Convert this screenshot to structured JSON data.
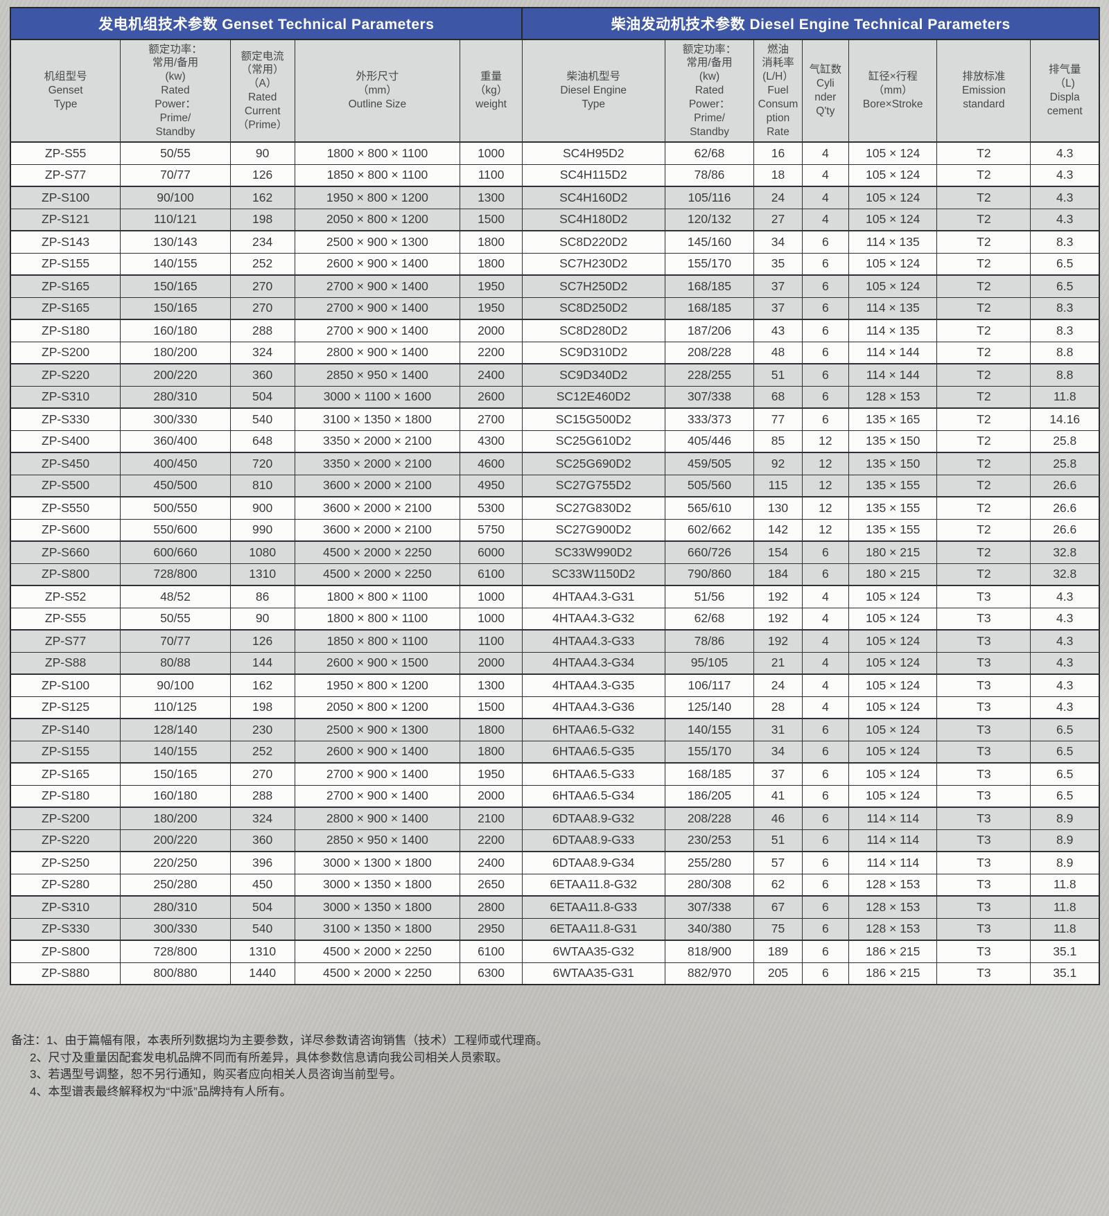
{
  "theme": {
    "header_blue": "#3d57a6",
    "row_shade": "#d9dbda",
    "row_white": "#fcfcfb",
    "border_dark": "#2c2f33",
    "page_background": "#c7c6c2"
  },
  "table": {
    "sections": [
      {
        "title": "发电机组技术参数 Genset Technical Parameters",
        "span": 5
      },
      {
        "title": "柴油发动机技术参数 Diesel Engine Technical Parameters",
        "span": 7
      }
    ],
    "columns": [
      {
        "id": "genset-type",
        "label": "机组型号\nGenset\nType",
        "width": 10.1
      },
      {
        "id": "genset-rated-power",
        "label": "额定功率：\n常用/备用\n(kw)\nRated\nPower：\nPrime/\nStandby",
        "width": 10.1
      },
      {
        "id": "rated-current",
        "label": "额定电流\n（常用）\n（A）\nRated\nCurrent\n（Prime）",
        "width": 5.9
      },
      {
        "id": "outline-size",
        "label": "外形尺寸\n（mm）\nOutline Size",
        "width": 15.2
      },
      {
        "id": "weight",
        "label": "重量\n（kg）\nweight",
        "width": 5.7
      },
      {
        "id": "engine-type",
        "label": "柴油机型号\nDiesel Engine\nType",
        "width": 13.1
      },
      {
        "id": "engine-rated-power",
        "label": "额定功率：\n常用/备用\n(kw)\nRated\nPower：\nPrime/\nStandby",
        "width": 8.2
      },
      {
        "id": "fuel-consumption",
        "label": "燃油\n消耗率\n(L/H）\nFuel\nConsum\nption\nRate",
        "width": 4.4
      },
      {
        "id": "cylinder-qty",
        "label": "气缸数\nCyli\nnder\nQ'ty",
        "width": 4.3
      },
      {
        "id": "bore-stroke",
        "label": "缸径×行程\n（mm）\nBore×Stroke",
        "width": 8.1
      },
      {
        "id": "emission-standard",
        "label": "排放标准\nEmission\nstandard",
        "width": 8.6
      },
      {
        "id": "displacement",
        "label": "排气量\n（L)\nDispla\ncement",
        "width": 6.3
      }
    ],
    "rows": [
      [
        "ZP-S55",
        "50/55",
        "90",
        "1800 × 800 × 1100",
        "1000",
        "SC4H95D2",
        "62/68",
        "16",
        "4",
        "105 × 124",
        "T2",
        "4.3"
      ],
      [
        "ZP-S77",
        "70/77",
        "126",
        "1850 × 800 × 1100",
        "1100",
        "SC4H115D2",
        "78/86",
        "18",
        "4",
        "105 × 124",
        "T2",
        "4.3"
      ],
      [
        "ZP-S100",
        "90/100",
        "162",
        "1950 × 800 × 1200",
        "1300",
        "SC4H160D2",
        "105/116",
        "24",
        "4",
        "105 × 124",
        "T2",
        "4.3"
      ],
      [
        "ZP-S121",
        "110/121",
        "198",
        "2050 × 800 × 1200",
        "1500",
        "SC4H180D2",
        "120/132",
        "27",
        "4",
        "105 × 124",
        "T2",
        "4.3"
      ],
      [
        "ZP-S143",
        "130/143",
        "234",
        "2500 × 900 × 1300",
        "1800",
        "SC8D220D2",
        "145/160",
        "34",
        "6",
        "114 × 135",
        "T2",
        "8.3"
      ],
      [
        "ZP-S155",
        "140/155",
        "252",
        "2600 × 900 × 1400",
        "1800",
        "SC7H230D2",
        "155/170",
        "35",
        "6",
        "105 × 124",
        "T2",
        "6.5"
      ],
      [
        "ZP-S165",
        "150/165",
        "270",
        "2700 × 900 × 1400",
        "1950",
        "SC7H250D2",
        "168/185",
        "37",
        "6",
        "105 × 124",
        "T2",
        "6.5"
      ],
      [
        "ZP-S165",
        "150/165",
        "270",
        "2700 × 900 × 1400",
        "1950",
        "SC8D250D2",
        "168/185",
        "37",
        "6",
        "114 × 135",
        "T2",
        "8.3"
      ],
      [
        "ZP-S180",
        "160/180",
        "288",
        "2700 × 900 × 1400",
        "2000",
        "SC8D280D2",
        "187/206",
        "43",
        "6",
        "114 × 135",
        "T2",
        "8.3"
      ],
      [
        "ZP-S200",
        "180/200",
        "324",
        "2800 × 900 × 1400",
        "2200",
        "SC9D310D2",
        "208/228",
        "48",
        "6",
        "114 × 144",
        "T2",
        "8.8"
      ],
      [
        "ZP-S220",
        "200/220",
        "360",
        "2850 × 950 × 1400",
        "2400",
        "SC9D340D2",
        "228/255",
        "51",
        "6",
        "114 × 144",
        "T2",
        "8.8"
      ],
      [
        "ZP-S310",
        "280/310",
        "504",
        "3000 × 1100 × 1600",
        "2600",
        "SC12E460D2",
        "307/338",
        "68",
        "6",
        "128 × 153",
        "T2",
        "11.8"
      ],
      [
        "ZP-S330",
        "300/330",
        "540",
        "3100 × 1350 × 1800",
        "2700",
        "SC15G500D2",
        "333/373",
        "77",
        "6",
        "135 × 165",
        "T2",
        "14.16"
      ],
      [
        "ZP-S400",
        "360/400",
        "648",
        "3350 × 2000 × 2100",
        "4300",
        "SC25G610D2",
        "405/446",
        "85",
        "12",
        "135 × 150",
        "T2",
        "25.8"
      ],
      [
        "ZP-S450",
        "400/450",
        "720",
        "3350 × 2000 × 2100",
        "4600",
        "SC25G690D2",
        "459/505",
        "92",
        "12",
        "135 × 150",
        "T2",
        "25.8"
      ],
      [
        "ZP-S500",
        "450/500",
        "810",
        "3600 × 2000 × 2100",
        "4950",
        "SC27G755D2",
        "505/560",
        "115",
        "12",
        "135 × 155",
        "T2",
        "26.6"
      ],
      [
        "ZP-S550",
        "500/550",
        "900",
        "3600 × 2000 × 2100",
        "5300",
        "SC27G830D2",
        "565/610",
        "130",
        "12",
        "135 × 155",
        "T2",
        "26.6"
      ],
      [
        "ZP-S600",
        "550/600",
        "990",
        "3600 × 2000 × 2100",
        "5750",
        "SC27G900D2",
        "602/662",
        "142",
        "12",
        "135 × 155",
        "T2",
        "26.6"
      ],
      [
        "ZP-S660",
        "600/660",
        "1080",
        "4500 × 2000 × 2250",
        "6000",
        "SC33W990D2",
        "660/726",
        "154",
        "6",
        "180 × 215",
        "T2",
        "32.8"
      ],
      [
        "ZP-S800",
        "728/800",
        "1310",
        "4500 × 2000 × 2250",
        "6100",
        "SC33W1150D2",
        "790/860",
        "184",
        "6",
        "180 × 215",
        "T2",
        "32.8"
      ],
      [
        "ZP-S52",
        "48/52",
        "86",
        "1800 × 800 × 1100",
        "1000",
        "4HTAA4.3-G31",
        "51/56",
        "192",
        "4",
        "105 × 124",
        "T3",
        "4.3"
      ],
      [
        "ZP-S55",
        "50/55",
        "90",
        "1800 × 800 × 1100",
        "1000",
        "4HTAA4.3-G32",
        "62/68",
        "192",
        "4",
        "105 × 124",
        "T3",
        "4.3"
      ],
      [
        "ZP-S77",
        "70/77",
        "126",
        "1850 × 800 × 1100",
        "1100",
        "4HTAA4.3-G33",
        "78/86",
        "192",
        "4",
        "105 × 124",
        "T3",
        "4.3"
      ],
      [
        "ZP-S88",
        "80/88",
        "144",
        "2600 × 900 × 1500",
        "2000",
        "4HTAA4.3-G34",
        "95/105",
        "21",
        "4",
        "105 × 124",
        "T3",
        "4.3"
      ],
      [
        "ZP-S100",
        "90/100",
        "162",
        "1950 × 800 × 1200",
        "1300",
        "4HTAA4.3-G35",
        "106/117",
        "24",
        "4",
        "105 × 124",
        "T3",
        "4.3"
      ],
      [
        "ZP-S125",
        "110/125",
        "198",
        "2050 × 800 × 1200",
        "1500",
        "4HTAA4.3-G36",
        "125/140",
        "28",
        "4",
        "105 × 124",
        "T3",
        "4.3"
      ],
      [
        "ZP-S140",
        "128/140",
        "230",
        "2500 × 900 × 1300",
        "1800",
        "6HTAA6.5-G32",
        "140/155",
        "31",
        "6",
        "105 × 124",
        "T3",
        "6.5"
      ],
      [
        "ZP-S155",
        "140/155",
        "252",
        "2600 × 900 × 1400",
        "1800",
        "6HTAA6.5-G35",
        "155/170",
        "34",
        "6",
        "105 × 124",
        "T3",
        "6.5"
      ],
      [
        "ZP-S165",
        "150/165",
        "270",
        "2700 × 900 × 1400",
        "1950",
        "6HTAA6.5-G33",
        "168/185",
        "37",
        "6",
        "105 × 124",
        "T3",
        "6.5"
      ],
      [
        "ZP-S180",
        "160/180",
        "288",
        "2700 × 900 × 1400",
        "2000",
        "6HTAA6.5-G34",
        "186/205",
        "41",
        "6",
        "105 × 124",
        "T3",
        "6.5"
      ],
      [
        "ZP-S200",
        "180/200",
        "324",
        "2800 × 900 × 1400",
        "2100",
        "6DTAA8.9-G32",
        "208/228",
        "46",
        "6",
        "114 × 114",
        "T3",
        "8.9"
      ],
      [
        "ZP-S220",
        "200/220",
        "360",
        "2850 × 950 × 1400",
        "2200",
        "6DTAA8.9-G33",
        "230/253",
        "51",
        "6",
        "114 × 114",
        "T3",
        "8.9"
      ],
      [
        "ZP-S250",
        "220/250",
        "396",
        "3000 × 1300 × 1800",
        "2400",
        "6DTAA8.9-G34",
        "255/280",
        "57",
        "6",
        "114 × 114",
        "T3",
        "8.9"
      ],
      [
        "ZP-S280",
        "250/280",
        "450",
        "3000 × 1350 × 1800",
        "2650",
        "6ETAA11.8-G32",
        "280/308",
        "62",
        "6",
        "128 × 153",
        "T3",
        "11.8"
      ],
      [
        "ZP-S310",
        "280/310",
        "504",
        "3000 × 1350 × 1800",
        "2800",
        "6ETAA11.8-G33",
        "307/338",
        "67",
        "6",
        "128 × 153",
        "T3",
        "11.8"
      ],
      [
        "ZP-S330",
        "300/330",
        "540",
        "3100 × 1350 × 1800",
        "2950",
        "6ETAA11.8-G31",
        "340/380",
        "75",
        "6",
        "128 × 153",
        "T3",
        "11.8"
      ],
      [
        "ZP-S800",
        "728/800",
        "1310",
        "4500 × 2000 × 2250",
        "6100",
        "6WTAA35-G32",
        "818/900",
        "189",
        "6",
        "186 × 215",
        "T3",
        "35.1"
      ],
      [
        "ZP-S880",
        "800/880",
        "1440",
        "4500 × 2000 × 2250",
        "6300",
        "6WTAA35-G31",
        "882/970",
        "205",
        "6",
        "186 × 215",
        "T3",
        "35.1"
      ]
    ]
  },
  "notes": {
    "lines": [
      "备注：1、由于篇幅有限，本表所列数据均为主要参数，详尽参数请咨询销售（技术）工程师或代理商。",
      "2、尺寸及重量因配套发电机品牌不同而有所差异，具体参数信息请向我公司相关人员索取。",
      "3、若遇型号调整，恕不另行通知，购买者应向相关人员咨询当前型号。",
      "4、本型谱表最终解释权为“中派”品牌持有人所有。"
    ]
  }
}
